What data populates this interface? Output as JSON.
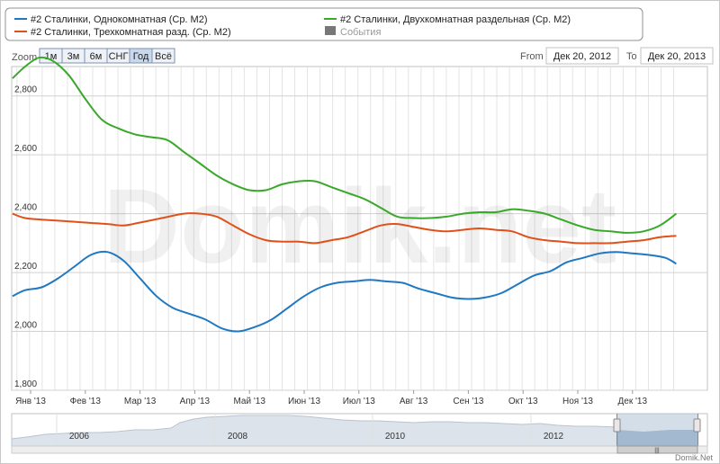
{
  "legend": {
    "items": [
      {
        "label": "#2 Сталинки, Однокомнатная (Ср. М2)",
        "color": "#1f78c1",
        "type": "line"
      },
      {
        "label": "#2 Сталинки, Двухкомнатная раздельная (Ср. М2)",
        "color": "#3aa82a",
        "type": "line"
      },
      {
        "label": "#2 Сталинки, Трехкомнатная разд. (Ср. М2)",
        "color": "#e0511a",
        "type": "line"
      },
      {
        "label": "События",
        "color": "#777777",
        "type": "box"
      }
    ]
  },
  "zoom": {
    "label": "Zoom",
    "buttons": [
      "1м",
      "3м",
      "6м",
      "СНГ",
      "Год",
      "Всё"
    ],
    "selected": "Год"
  },
  "range": {
    "from_label": "From",
    "from_value": "Дек 20, 2012",
    "to_label": "To",
    "to_value": "Дек 20, 2013"
  },
  "watermark": "Domik.net",
  "credit": "Domik.Net",
  "navigator": {
    "year_labels": [
      "2006",
      "2008",
      "2010",
      "2012"
    ],
    "handle_glyph": "|||"
  },
  "chart_data": {
    "type": "line",
    "x_tick_labels": [
      "Янв '13",
      "Фев '13",
      "Мар '13",
      "Апр '13",
      "Май '13",
      "Июн '13",
      "Июл '13",
      "Авг '13",
      "Сен '13",
      "Окт '13",
      "Ноя '13",
      "Дек '13"
    ],
    "y_tick_labels": [
      "1,800",
      "2,000",
      "2,200",
      "2,400",
      "2,600",
      "2,800"
    ],
    "ylim": [
      1800,
      2900
    ],
    "xlim": [
      -0.33,
      11.8
    ],
    "x_unit_note": "months since Jan 2013",
    "grid": true,
    "legend_position": "top",
    "series": [
      {
        "name": "#2 Сталинки, Однокомнатная (Ср. М2)",
        "color": "#1f78c1",
        "points": [
          [
            -0.33,
            2120
          ],
          [
            -0.1,
            2140
          ],
          [
            0.2,
            2150
          ],
          [
            0.5,
            2180
          ],
          [
            0.8,
            2220
          ],
          [
            1.1,
            2260
          ],
          [
            1.4,
            2270
          ],
          [
            1.7,
            2240
          ],
          [
            2.0,
            2180
          ],
          [
            2.3,
            2120
          ],
          [
            2.6,
            2080
          ],
          [
            2.9,
            2060
          ],
          [
            3.2,
            2040
          ],
          [
            3.5,
            2010
          ],
          [
            3.8,
            2000
          ],
          [
            4.1,
            2015
          ],
          [
            4.4,
            2040
          ],
          [
            4.7,
            2080
          ],
          [
            5.0,
            2120
          ],
          [
            5.3,
            2150
          ],
          [
            5.6,
            2165
          ],
          [
            5.9,
            2170
          ],
          [
            6.2,
            2175
          ],
          [
            6.5,
            2170
          ],
          [
            6.8,
            2165
          ],
          [
            7.1,
            2145
          ],
          [
            7.4,
            2130
          ],
          [
            7.7,
            2115
          ],
          [
            8.0,
            2110
          ],
          [
            8.3,
            2115
          ],
          [
            8.6,
            2130
          ],
          [
            8.9,
            2160
          ],
          [
            9.2,
            2190
          ],
          [
            9.5,
            2205
          ],
          [
            9.8,
            2235
          ],
          [
            10.1,
            2250
          ],
          [
            10.4,
            2265
          ],
          [
            10.7,
            2270
          ],
          [
            11.0,
            2265
          ],
          [
            11.3,
            2260
          ],
          [
            11.6,
            2250
          ],
          [
            11.8,
            2230
          ]
        ]
      },
      {
        "name": "#2 Сталинки, Двухкомнатная раздельная (Ср. М2)",
        "color": "#3aa82a",
        "points": [
          [
            -0.33,
            2860
          ],
          [
            -0.1,
            2900
          ],
          [
            0.15,
            2930
          ],
          [
            0.4,
            2920
          ],
          [
            0.7,
            2870
          ],
          [
            1.0,
            2790
          ],
          [
            1.3,
            2720
          ],
          [
            1.6,
            2690
          ],
          [
            1.9,
            2670
          ],
          [
            2.2,
            2660
          ],
          [
            2.5,
            2650
          ],
          [
            2.8,
            2610
          ],
          [
            3.1,
            2570
          ],
          [
            3.4,
            2530
          ],
          [
            3.7,
            2500
          ],
          [
            4.0,
            2480
          ],
          [
            4.3,
            2480
          ],
          [
            4.6,
            2500
          ],
          [
            4.9,
            2510
          ],
          [
            5.2,
            2510
          ],
          [
            5.5,
            2490
          ],
          [
            5.8,
            2470
          ],
          [
            6.1,
            2450
          ],
          [
            6.4,
            2420
          ],
          [
            6.7,
            2390
          ],
          [
            7.0,
            2385
          ],
          [
            7.3,
            2385
          ],
          [
            7.6,
            2390
          ],
          [
            7.9,
            2400
          ],
          [
            8.2,
            2405
          ],
          [
            8.5,
            2405
          ],
          [
            8.8,
            2415
          ],
          [
            9.1,
            2410
          ],
          [
            9.4,
            2400
          ],
          [
            9.7,
            2380
          ],
          [
            10.0,
            2360
          ],
          [
            10.3,
            2345
          ],
          [
            10.6,
            2340
          ],
          [
            10.9,
            2335
          ],
          [
            11.2,
            2340
          ],
          [
            11.5,
            2360
          ],
          [
            11.8,
            2400
          ]
        ]
      },
      {
        "name": "#2 Сталинки, Трехкомнатная разд. (Ср. М2)",
        "color": "#e0511a",
        "points": [
          [
            -0.33,
            2400
          ],
          [
            -0.1,
            2385
          ],
          [
            0.2,
            2380
          ],
          [
            0.6,
            2375
          ],
          [
            1.0,
            2370
          ],
          [
            1.4,
            2365
          ],
          [
            1.7,
            2360
          ],
          [
            2.0,
            2370
          ],
          [
            2.4,
            2385
          ],
          [
            2.8,
            2400
          ],
          [
            3.1,
            2400
          ],
          [
            3.4,
            2390
          ],
          [
            3.7,
            2360
          ],
          [
            4.0,
            2330
          ],
          [
            4.3,
            2310
          ],
          [
            4.6,
            2305
          ],
          [
            4.9,
            2305
          ],
          [
            5.2,
            2300
          ],
          [
            5.5,
            2310
          ],
          [
            5.8,
            2320
          ],
          [
            6.1,
            2340
          ],
          [
            6.4,
            2360
          ],
          [
            6.7,
            2365
          ],
          [
            7.0,
            2355
          ],
          [
            7.3,
            2345
          ],
          [
            7.6,
            2340
          ],
          [
            7.9,
            2345
          ],
          [
            8.2,
            2350
          ],
          [
            8.5,
            2345
          ],
          [
            8.8,
            2340
          ],
          [
            9.1,
            2320
          ],
          [
            9.4,
            2310
          ],
          [
            9.7,
            2305
          ],
          [
            10.0,
            2300
          ],
          [
            10.3,
            2300
          ],
          [
            10.6,
            2300
          ],
          [
            10.9,
            2305
          ],
          [
            11.2,
            2310
          ],
          [
            11.5,
            2320
          ],
          [
            11.8,
            2325
          ]
        ]
      }
    ]
  }
}
